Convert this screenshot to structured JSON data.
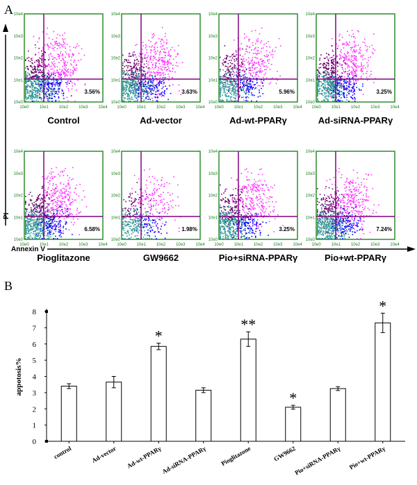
{
  "panel_a": {
    "letter": "A",
    "y_axis_label": "PI",
    "x_axis_label": "Annexin V",
    "tick_labels": [
      "10e0",
      "10e1",
      "10e2",
      "10e3",
      "10e4"
    ],
    "colors": {
      "frame": "#2e8b2e",
      "gate": "#800080",
      "dots_upper_right": "#ff33ff",
      "dots_upper_left": "#660066",
      "dots_lower_left": "#339999",
      "dots_lower_right": "#0000ff"
    },
    "plots": [
      {
        "label": "Control",
        "percent": "3.56%",
        "density": 1.0
      },
      {
        "label": "Ad-vector",
        "percent": "3.63%",
        "density": 1.0
      },
      {
        "label": "Ad-wt-PPARγ",
        "percent": "5.96%",
        "density": 0.8
      },
      {
        "label": "Ad-siRNA-PPARγ",
        "percent": "3.25%",
        "density": 1.0
      },
      {
        "label": "Pioglitazone",
        "percent": "6.58%",
        "density": 1.0
      },
      {
        "label": "GW9662",
        "percent": "1.98%",
        "density": 0.5
      },
      {
        "label": "Pio+siRNA-PPARγ",
        "percent": "3.25%",
        "density": 0.9
      },
      {
        "label": "Pio+wt-PPARγ",
        "percent": "7.24%",
        "density": 1.0
      }
    ]
  },
  "chart_data": {
    "type": "bar",
    "panel_letter": "B",
    "title": "",
    "xlabel": "",
    "ylabel": "appotosis%",
    "ylim": [
      0,
      8
    ],
    "yticks": [
      "0",
      "1",
      "2",
      "3",
      "4",
      "5",
      "6",
      "7",
      "8"
    ],
    "categories": [
      "control",
      "Ad-vector",
      "Ad-wt-PPARγ",
      "Ad-siRNA-PPARγ",
      "Pioglitazone",
      "GW9662",
      "Pio+siRNA-PPARγ",
      "Pio+wt-PPARγ"
    ],
    "values": [
      3.4,
      3.65,
      5.85,
      3.15,
      6.3,
      2.1,
      3.25,
      7.3
    ],
    "errors": [
      0.15,
      0.35,
      0.2,
      0.15,
      0.45,
      0.12,
      0.12,
      0.6
    ],
    "significance": [
      "",
      "",
      "*",
      "",
      "**",
      "*",
      "",
      "*"
    ]
  }
}
